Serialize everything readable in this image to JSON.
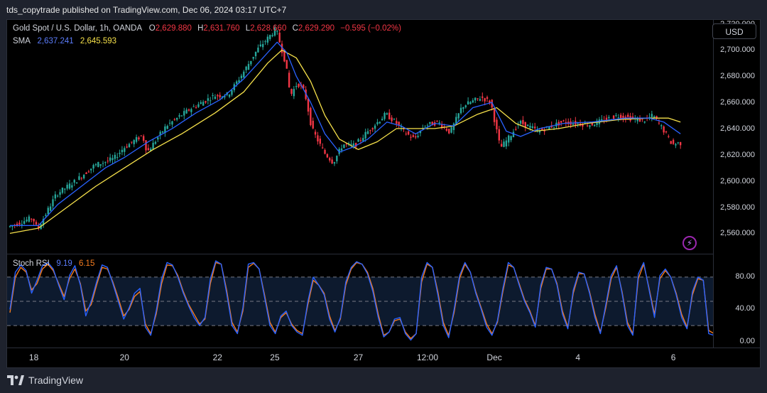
{
  "header": {
    "publisher": "tds_copytrade published on TradingView.com, Dec 06, 2024 03:17 UTC+7"
  },
  "legend": {
    "symbol": "Gold Spot / U.S. Dollar, 1h, OANDA",
    "o_label": "O",
    "o": "2,629.880",
    "h_label": "H",
    "h": "2,631.760",
    "l_label": "L",
    "l": "2,628.660",
    "c_label": "C",
    "c": "2,629.290",
    "change": "−0.595 (−0.02%)",
    "sma_label": "SMA",
    "sma_fast": "2,637.241",
    "sma_slow": "2,645.593"
  },
  "rsi_legend": {
    "label": "Stoch RSI",
    "k": "9.19",
    "d": "6.15"
  },
  "currency_button": "USD",
  "footer": {
    "brand": "TradingView"
  },
  "colors": {
    "up": "#26a69a",
    "down": "#f23645",
    "sma_fast": "#2962ff",
    "sma_slow": "#f5e04a",
    "k": "#2962ff",
    "d": "#f57c1f"
  },
  "chart_data": [
    {
      "type": "candlestick",
      "title": "Gold Spot / U.S. Dollar, 1h, OANDA",
      "ylim": [
        2545,
        2723
      ],
      "yticks": [
        "2,720.000",
        "2,700.000",
        "2,680.000",
        "2,660.000",
        "2,640.000",
        "2,620.000",
        "2,600.000",
        "2,580.000",
        "2,560.000"
      ],
      "ytick_values": [
        2720,
        2700,
        2680,
        2660,
        2640,
        2620,
        2600,
        2580,
        2560
      ],
      "xticks": [
        "18",
        "20",
        "22",
        "25",
        "27",
        "12:00",
        "Dec",
        "4",
        "6"
      ],
      "xtick_index": [
        10,
        48,
        87,
        111,
        146,
        175,
        203,
        238,
        278
      ],
      "bars_count": 286,
      "price_path": [
        [
          0,
          2565
        ],
        [
          10,
          2572
        ],
        [
          12,
          2563
        ],
        [
          20,
          2590
        ],
        [
          28,
          2600
        ],
        [
          36,
          2612
        ],
        [
          44,
          2617
        ],
        [
          48,
          2625
        ],
        [
          56,
          2635
        ],
        [
          58,
          2622
        ],
        [
          66,
          2642
        ],
        [
          76,
          2655
        ],
        [
          86,
          2665
        ],
        [
          92,
          2666
        ],
        [
          98,
          2682
        ],
        [
          104,
          2700
        ],
        [
          110,
          2712
        ],
        [
          112,
          2716
        ],
        [
          116,
          2690
        ],
        [
          118,
          2665
        ],
        [
          121,
          2675
        ],
        [
          124,
          2668
        ],
        [
          127,
          2640
        ],
        [
          132,
          2622
        ],
        [
          136,
          2614
        ],
        [
          140,
          2628
        ],
        [
          145,
          2627
        ],
        [
          150,
          2637
        ],
        [
          158,
          2651
        ],
        [
          162,
          2645
        ],
        [
          166,
          2637
        ],
        [
          170,
          2632
        ],
        [
          174,
          2642
        ],
        [
          180,
          2645
        ],
        [
          185,
          2637
        ],
        [
          190,
          2657
        ],
        [
          198,
          2664
        ],
        [
          202,
          2660
        ],
        [
          206,
          2625
        ],
        [
          210,
          2634
        ],
        [
          214,
          2645
        ],
        [
          222,
          2638
        ],
        [
          232,
          2645
        ],
        [
          244,
          2643
        ],
        [
          255,
          2650
        ],
        [
          266,
          2646
        ],
        [
          270,
          2650
        ],
        [
          274,
          2640
        ],
        [
          278,
          2628
        ],
        [
          281,
          2629
        ]
      ],
      "sma_fast_path": [
        [
          0,
          2566
        ],
        [
          12,
          2566
        ],
        [
          20,
          2582
        ],
        [
          30,
          2596
        ],
        [
          40,
          2610
        ],
        [
          48,
          2618
        ],
        [
          58,
          2630
        ],
        [
          68,
          2640
        ],
        [
          78,
          2652
        ],
        [
          88,
          2662
        ],
        [
          98,
          2678
        ],
        [
          106,
          2694
        ],
        [
          112,
          2706
        ],
        [
          116,
          2698
        ],
        [
          120,
          2680
        ],
        [
          126,
          2660
        ],
        [
          132,
          2636
        ],
        [
          138,
          2622
        ],
        [
          144,
          2626
        ],
        [
          150,
          2632
        ],
        [
          158,
          2645
        ],
        [
          164,
          2642
        ],
        [
          170,
          2636
        ],
        [
          178,
          2644
        ],
        [
          186,
          2642
        ],
        [
          194,
          2656
        ],
        [
          202,
          2660
        ],
        [
          208,
          2638
        ],
        [
          214,
          2634
        ],
        [
          222,
          2640
        ],
        [
          232,
          2644
        ],
        [
          244,
          2645
        ],
        [
          258,
          2648
        ],
        [
          268,
          2648
        ],
        [
          274,
          2645
        ],
        [
          281,
          2636
        ]
      ],
      "sma_slow_path": [
        [
          0,
          2560
        ],
        [
          12,
          2564
        ],
        [
          24,
          2580
        ],
        [
          36,
          2596
        ],
        [
          48,
          2610
        ],
        [
          60,
          2624
        ],
        [
          72,
          2636
        ],
        [
          86,
          2652
        ],
        [
          98,
          2668
        ],
        [
          108,
          2690
        ],
        [
          114,
          2700
        ],
        [
          120,
          2694
        ],
        [
          126,
          2676
        ],
        [
          132,
          2650
        ],
        [
          138,
          2632
        ],
        [
          146,
          2624
        ],
        [
          154,
          2630
        ],
        [
          162,
          2640
        ],
        [
          170,
          2640
        ],
        [
          178,
          2640
        ],
        [
          186,
          2642
        ],
        [
          196,
          2651
        ],
        [
          204,
          2656
        ],
        [
          212,
          2644
        ],
        [
          220,
          2638
        ],
        [
          230,
          2640
        ],
        [
          242,
          2644
        ],
        [
          256,
          2647
        ],
        [
          268,
          2648
        ],
        [
          276,
          2648
        ],
        [
          281,
          2645
        ]
      ]
    },
    {
      "type": "line",
      "title": "Stoch RSI",
      "ylim": [
        -8,
        108
      ],
      "yticks": [
        "80.00",
        "40.00",
        "0.00"
      ],
      "ytick_values": [
        80,
        40,
        0
      ],
      "bands": [
        80,
        50,
        20
      ],
      "series": [
        {
          "name": "9.19",
          "values": [
            40,
            86,
            95,
            88,
            60,
            76,
            94,
            98,
            90,
            70,
            52,
            82,
            94,
            70,
            32,
            50,
            74,
            95,
            92,
            72,
            50,
            28,
            42,
            60,
            66,
            18,
            8,
            38,
            78,
            98,
            95,
            80,
            60,
            44,
            30,
            20,
            30,
            78,
            100,
            96,
            60,
            20,
            10,
            42,
            96,
            98,
            90,
            55,
            20,
            10,
            32,
            38,
            20,
            12,
            8,
            50,
            80,
            70,
            58,
            28,
            12,
            30,
            74,
            92,
            99,
            96,
            84,
            62,
            30,
            6,
            12,
            28,
            30,
            10,
            2,
            10,
            80,
            98,
            92,
            58,
            20,
            5,
            40,
            82,
            98,
            86,
            60,
            40,
            18,
            8,
            26,
            66,
            98,
            92,
            70,
            50,
            36,
            18,
            70,
            92,
            90,
            70,
            34,
            16,
            64,
            86,
            84,
            60,
            30,
            10,
            46,
            82,
            94,
            60,
            20,
            8,
            84,
            98,
            64,
            30,
            82,
            90,
            80,
            58,
            30,
            16,
            62,
            80,
            76,
            10,
            8
          ]
        },
        {
          "name": "6.15",
          "values": [
            36,
            80,
            92,
            86,
            64,
            72,
            90,
            96,
            88,
            72,
            56,
            78,
            90,
            72,
            38,
            46,
            70,
            92,
            90,
            74,
            54,
            32,
            40,
            56,
            62,
            22,
            10,
            34,
            72,
            95,
            94,
            82,
            62,
            46,
            34,
            22,
            28,
            72,
            98,
            96,
            64,
            24,
            12,
            38,
            92,
            97,
            90,
            58,
            24,
            12,
            30,
            36,
            22,
            14,
            10,
            46,
            76,
            70,
            60,
            32,
            14,
            28,
            70,
            90,
            98,
            96,
            86,
            66,
            34,
            8,
            12,
            26,
            28,
            12,
            4,
            10,
            74,
            96,
            92,
            62,
            24,
            8,
            36,
            78,
            96,
            86,
            62,
            42,
            22,
            10,
            24,
            62,
            95,
            92,
            72,
            52,
            38,
            20,
            66,
            90,
            90,
            72,
            38,
            18,
            60,
            84,
            84,
            62,
            34,
            12,
            42,
            78,
            92,
            62,
            24,
            10,
            78,
            96,
            66,
            34,
            78,
            88,
            80,
            60,
            34,
            18,
            58,
            78,
            76,
            14,
            10
          ]
        }
      ]
    }
  ]
}
